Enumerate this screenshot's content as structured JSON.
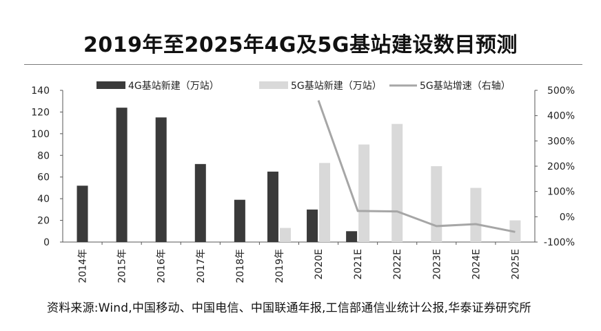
{
  "header": {
    "title": "2019年至2025年4G及5G基站建设数目预测"
  },
  "footer": {
    "source": "资料来源:Wind,中国移动、中国电信、中国联通年报,工信部通信业统计公报,华泰证券研究所"
  },
  "chart_data": {
    "type": "bar",
    "categories": [
      "2014年",
      "2015年",
      "2016年",
      "2017年",
      "2018年",
      "2019年",
      "2020E",
      "2021E",
      "2022E",
      "2023E",
      "2024E",
      "2025E"
    ],
    "series": [
      {
        "name": "4G基站新建（万站）",
        "type": "bar",
        "axis": "left",
        "color": "#3a3a3a",
        "values": [
          52,
          124,
          115,
          72,
          39,
          65,
          30,
          10,
          null,
          null,
          null,
          null
        ]
      },
      {
        "name": "5G基站新建（万站）",
        "type": "bar",
        "axis": "left",
        "color": "#d9d9d9",
        "values": [
          null,
          null,
          null,
          null,
          null,
          13,
          73,
          90,
          109,
          70,
          50,
          20
        ]
      },
      {
        "name": "5G基站增速（右轴）",
        "type": "line",
        "axis": "right",
        "color": "#a6a6a6",
        "values": [
          null,
          null,
          null,
          null,
          null,
          null,
          460,
          23,
          21,
          -37,
          -29,
          -60
        ]
      }
    ],
    "y_left": {
      "ylim": [
        0,
        140
      ],
      "ticks": [
        0,
        20,
        40,
        60,
        80,
        100,
        120,
        140
      ]
    },
    "y_right": {
      "ylim": [
        -100,
        500
      ],
      "ticks": [
        "-100%",
        "0%",
        "100%",
        "200%",
        "300%",
        "400%",
        "500%"
      ],
      "tick_values": [
        -100,
        0,
        100,
        200,
        300,
        400,
        500
      ]
    },
    "legend": "top",
    "grid": false,
    "title": "",
    "xlabel": "",
    "ylabel": ""
  }
}
